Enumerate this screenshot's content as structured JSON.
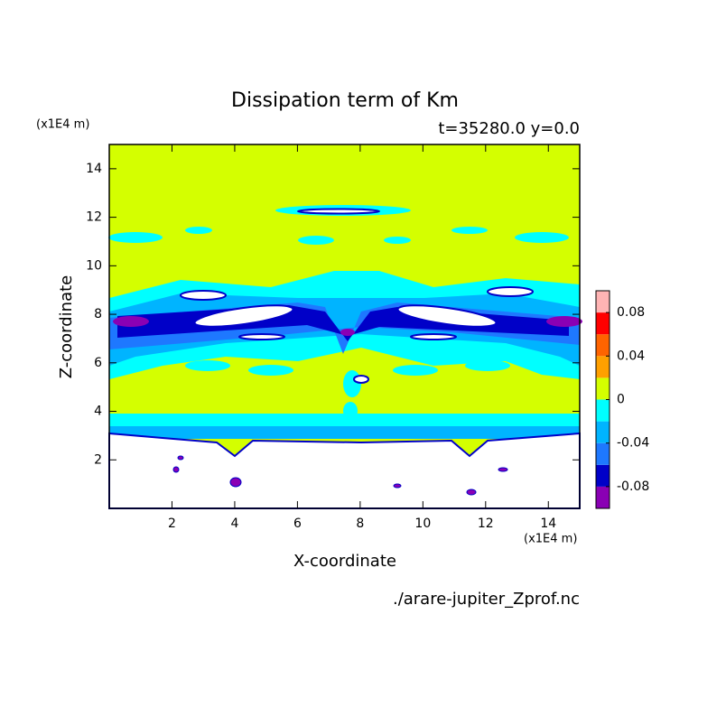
{
  "chart_data": {
    "type": "contour",
    "title": "Dissipation term of Km",
    "subtitle": "t=35280.0 y=0.0",
    "x_label": "X-coordinate",
    "y_label": "Z-coordinate",
    "x_unit": "(x1E4 m)",
    "y_unit": "(x1E4 m)",
    "source": "./arare-jupiter_Zprof.nc",
    "xlim": [
      0,
      15
    ],
    "xticks": [
      2,
      4,
      6,
      8,
      10,
      12,
      14
    ],
    "ylim": [
      0,
      15
    ],
    "yticks": [
      2,
      4,
      6,
      8,
      10,
      12,
      14
    ],
    "colorbar": {
      "lim": [
        -0.1,
        0.1
      ],
      "levels": [
        -0.1,
        -0.08,
        -0.06,
        -0.04,
        -0.02,
        0,
        0.02,
        0.04,
        0.06,
        0.08,
        0.1
      ],
      "ticks": [
        -0.08,
        -0.04,
        0,
        0.04,
        0.08
      ],
      "colors": [
        "#8a00b4",
        "#0000c8",
        "#1e78ff",
        "#00b4ff",
        "#00ffff",
        "#d4ff00",
        "#ffa000",
        "#ff6400",
        "#ff0000",
        "#ffb4b4"
      ]
    }
  }
}
